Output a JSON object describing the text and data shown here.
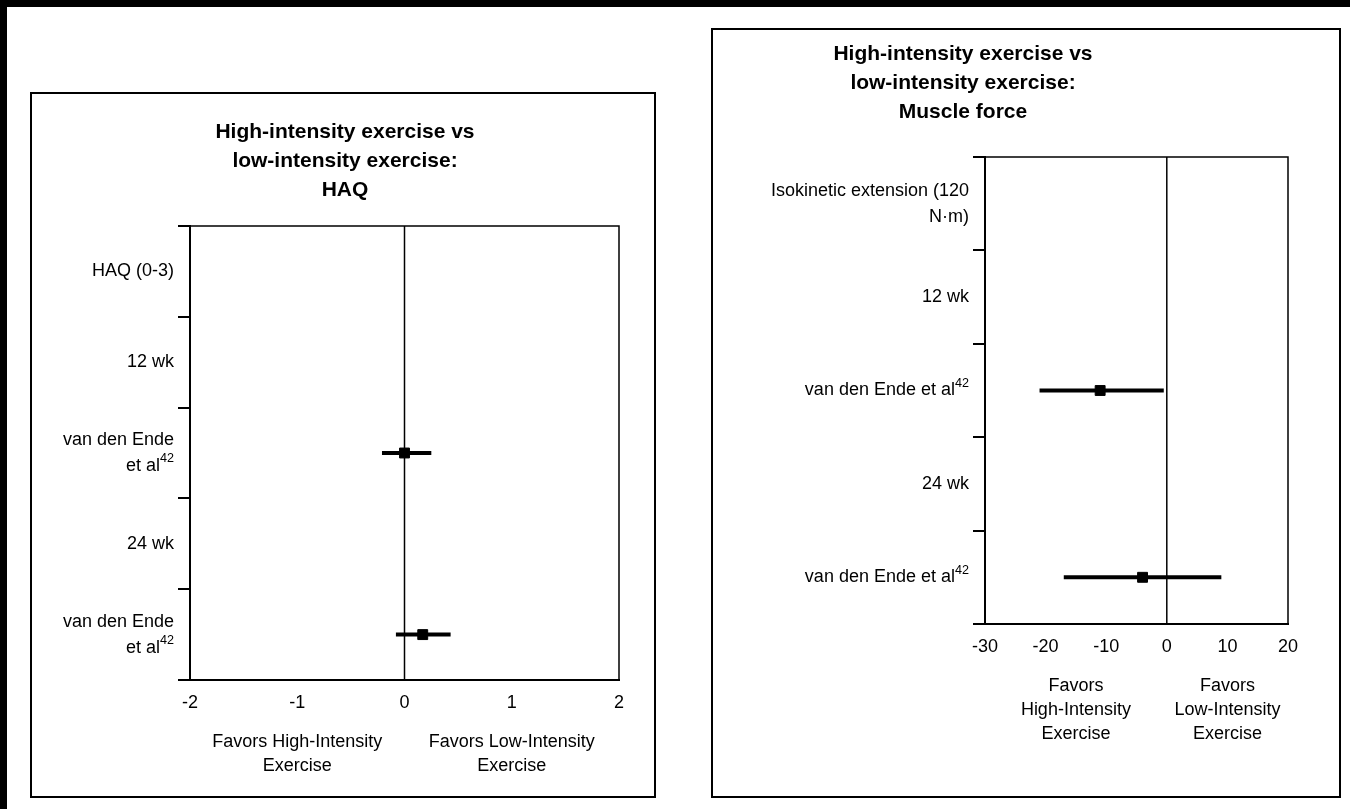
{
  "chart_data": [
    {
      "type": "scatter",
      "orientation": "horizontal",
      "title": "High-intensity exercise vs\nlow-intensity exercise:\nHAQ",
      "categories": [
        "HAQ (0-3)",
        "12 wk",
        "van den Ende et al$^{42}$",
        "24 wk",
        "van den Ende et al$^{42}$"
      ],
      "values": [
        null,
        null,
        0.0,
        null,
        0.17
      ],
      "errors": [
        null,
        null,
        [
          -0.21,
          0.25
        ],
        null,
        [
          -0.08,
          0.43
        ]
      ],
      "color": "#000000",
      "marker": "square",
      "xlim": [
        -2,
        2
      ],
      "xticks": [
        -2,
        -1,
        0,
        1,
        2
      ],
      "ref_lines": [
        {
          "axis": "x",
          "value": 0
        }
      ],
      "annotations": [
        "Favors High-Intensity Exercise",
        "Favors Low-Intensity Exercise"
      ]
    },
    {
      "type": "scatter",
      "orientation": "horizontal",
      "title": "High-intensity exercise vs\nlow-intensity exercise:\nMuscle force",
      "categories": [
        "Isokinetic extension (120 N·m)",
        "12 wk",
        "van den Ende et al$^{42}$",
        "24 wk",
        "van den Ende et al$^{42}$"
      ],
      "values": [
        null,
        null,
        -11,
        null,
        -4
      ],
      "errors": [
        null,
        null,
        [
          -21,
          -0.5
        ],
        null,
        [
          -17,
          9
        ]
      ],
      "color": "#000000",
      "marker": "square",
      "xlim": [
        -30,
        20
      ],
      "xticks": [
        -30,
        -20,
        -10,
        0,
        10,
        20
      ],
      "ref_lines": [
        {
          "axis": "x",
          "value": 0
        }
      ],
      "annotations": [
        "Favors High-Intensity Exercise",
        "Favors Low-Intensity Exercise"
      ]
    }
  ]
}
